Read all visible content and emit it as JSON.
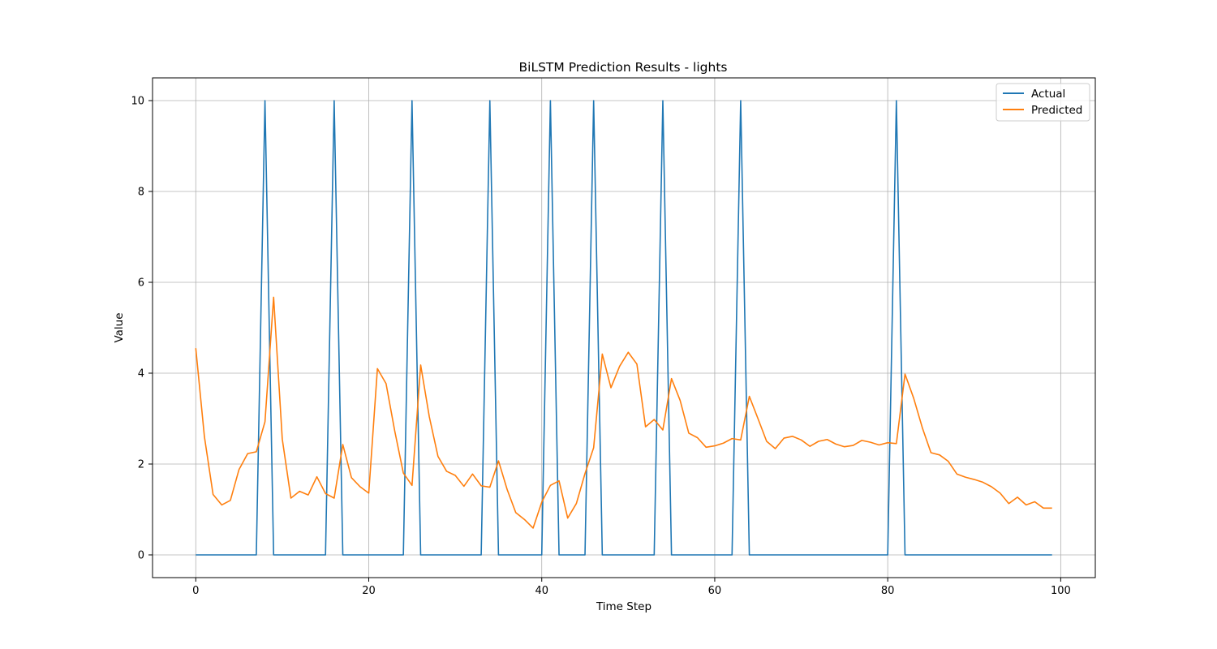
{
  "chart_data": {
    "type": "line",
    "title": "BiLSTM Prediction Results - lights",
    "xlabel": "Time Step",
    "ylabel": "Value",
    "xlim": [
      -5,
      104
    ],
    "ylim": [
      -0.5,
      10.5
    ],
    "x_ticks": [
      0,
      20,
      40,
      60,
      80,
      100
    ],
    "y_ticks": [
      0,
      2,
      4,
      6,
      8,
      10
    ],
    "grid": true,
    "legend": "top-right",
    "series": [
      {
        "name": "Actual",
        "color": "#1f77b4",
        "values": [
          0,
          0,
          0,
          0,
          0,
          0,
          0,
          0,
          10,
          0,
          0,
          0,
          0,
          0,
          0,
          0,
          10,
          0,
          0,
          0,
          0,
          0,
          0,
          0,
          0,
          10,
          0,
          0,
          0,
          0,
          0,
          0,
          0,
          0,
          10,
          0,
          0,
          0,
          0,
          0,
          0,
          10,
          0,
          0,
          0,
          0,
          10,
          0,
          0,
          0,
          0,
          0,
          0,
          0,
          10,
          0,
          0,
          0,
          0,
          0,
          0,
          0,
          0,
          10,
          0,
          0,
          0,
          0,
          0,
          0,
          0,
          0,
          0,
          0,
          0,
          0,
          0,
          0,
          0,
          0,
          0,
          10,
          0,
          0,
          0,
          0,
          0,
          0,
          0,
          0,
          0,
          0,
          0,
          0,
          0,
          0,
          0,
          0,
          0,
          0
        ]
      },
      {
        "name": "Predicted",
        "color": "#ff7f0e",
        "values": [
          4.55,
          2.6,
          1.33,
          1.1,
          1.2,
          1.88,
          2.23,
          2.27,
          2.93,
          5.67,
          2.55,
          1.25,
          1.4,
          1.32,
          1.72,
          1.35,
          1.25,
          2.43,
          1.7,
          1.5,
          1.36,
          4.1,
          3.77,
          2.73,
          1.8,
          1.53,
          4.18,
          3.04,
          2.17,
          1.84,
          1.75,
          1.51,
          1.78,
          1.52,
          1.49,
          2.07,
          1.44,
          0.93,
          0.78,
          0.59,
          1.16,
          1.53,
          1.63,
          0.81,
          1.13,
          1.79,
          2.36,
          4.42,
          3.68,
          4.15,
          4.46,
          4.2,
          2.82,
          2.98,
          2.75,
          3.88,
          3.4,
          2.68,
          2.58,
          2.37,
          2.4,
          2.46,
          2.56,
          2.53,
          3.49,
          3.0,
          2.5,
          2.34,
          2.57,
          2.61,
          2.53,
          2.39,
          2.5,
          2.54,
          2.44,
          2.38,
          2.41,
          2.52,
          2.48,
          2.42,
          2.47,
          2.45,
          3.98,
          3.45,
          2.8,
          2.25,
          2.2,
          2.06,
          1.78,
          1.71,
          1.66,
          1.6,
          1.5,
          1.36,
          1.13,
          1.27,
          1.1,
          1.17,
          1.03,
          1.03
        ]
      }
    ]
  }
}
